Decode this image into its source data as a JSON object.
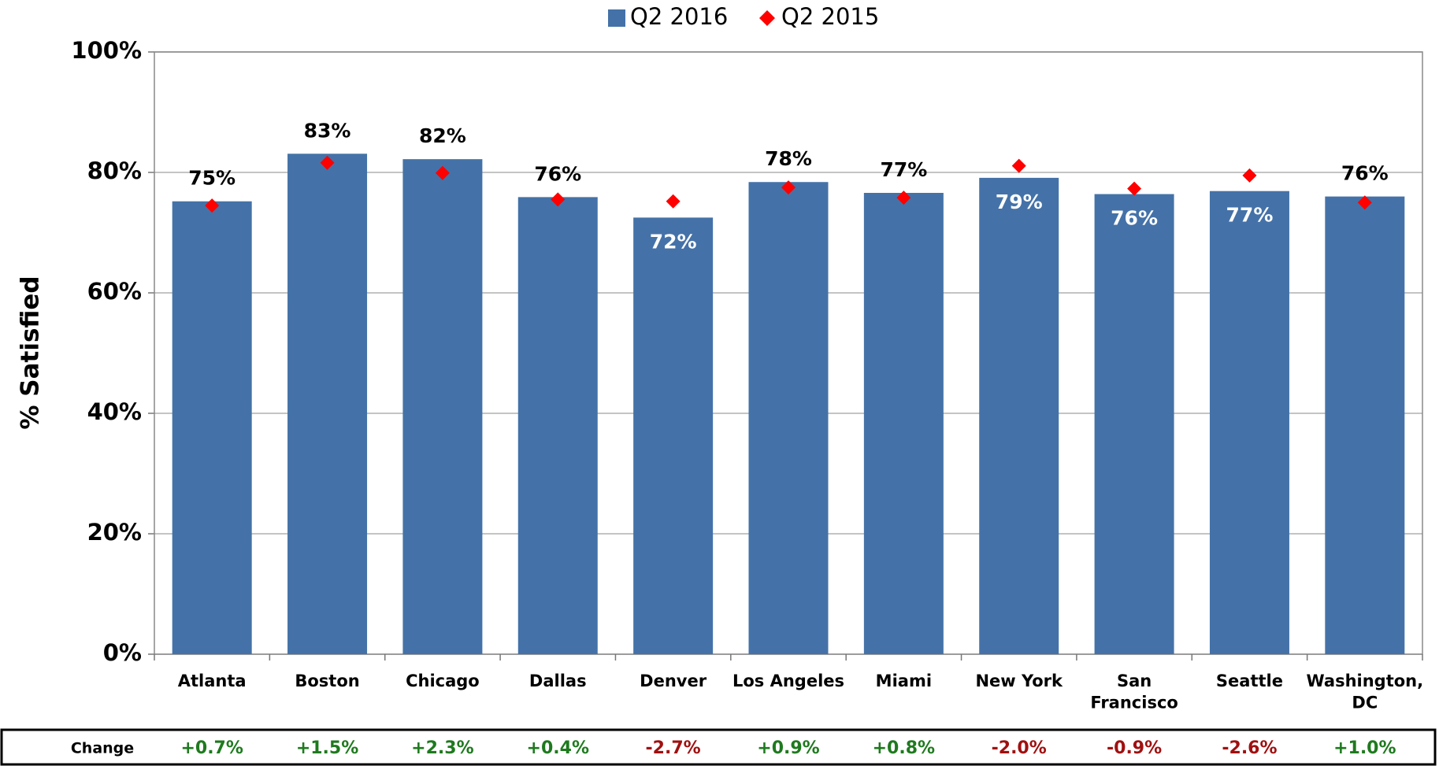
{
  "chart_data": {
    "type": "bar",
    "y_label": "% Satisfied",
    "categories": [
      "Atlanta",
      "Boston",
      "Chicago",
      "Dallas",
      "Denver",
      "Los Angeles",
      "Miami",
      "New York",
      "San\nFrancisco",
      "Seattle",
      "Washington,\nDC"
    ],
    "series": [
      {
        "name": "Q2 2016",
        "color": "#4472a8",
        "marker": "bar",
        "values": [
          75.2,
          83.1,
          82.2,
          75.9,
          72.5,
          78.4,
          76.6,
          79.1,
          76.4,
          76.9,
          76.0
        ],
        "value_labels": [
          "75%",
          "83%",
          "82%",
          "76%",
          "72%",
          "78%",
          "77%",
          "79%",
          "76%",
          "77%",
          "76%"
        ]
      },
      {
        "name": "Q2 2015",
        "color": "#ff0000",
        "marker": "diamond",
        "values": [
          74.5,
          81.6,
          79.9,
          75.5,
          75.2,
          77.5,
          75.8,
          81.1,
          77.3,
          79.5,
          75.0
        ]
      }
    ],
    "ylim": [
      0,
      100
    ],
    "yticks": [
      {
        "value": 0,
        "label": "0%"
      },
      {
        "value": 20,
        "label": "20%"
      },
      {
        "value": 40,
        "label": "40%"
      },
      {
        "value": 60,
        "label": "60%"
      },
      {
        "value": 80,
        "label": "80%"
      },
      {
        "value": 100,
        "label": "100%"
      }
    ],
    "grid": true,
    "legend": "top",
    "change_row": {
      "label": "Change",
      "values": [
        "+0.7%",
        "+1.5%",
        "+2.3%",
        "+0.4%",
        "-2.7%",
        "+0.9%",
        "+0.8%",
        "-2.0%",
        "-0.9%",
        "-2.6%",
        "+1.0%"
      ],
      "positive_color": "#1e7a1e",
      "negative_color": "#a01010"
    }
  }
}
